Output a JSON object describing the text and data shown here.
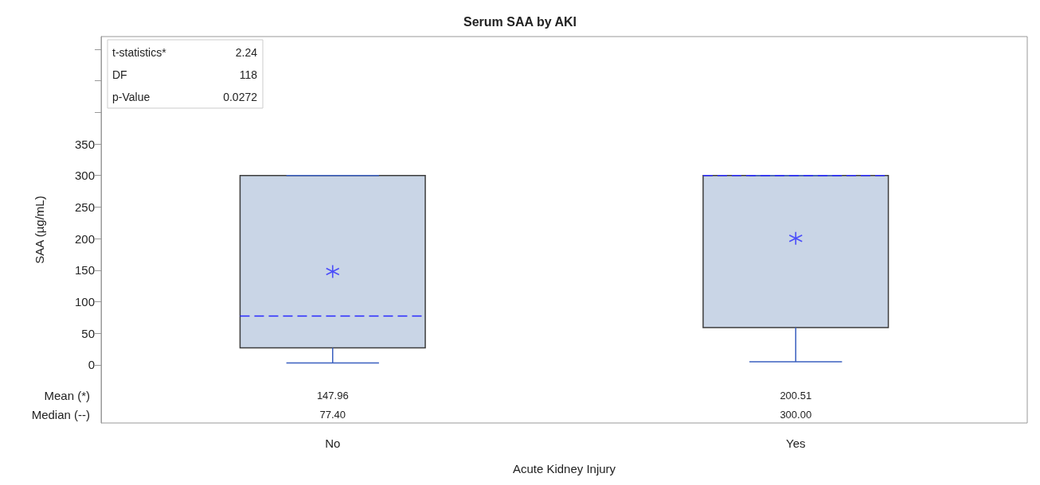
{
  "chart_data": {
    "type": "box",
    "title": "Serum SAA by AKI",
    "xlabel": "Acute Kidney Injury",
    "ylabel": "SAA (µg/mL)",
    "categories": [
      "No",
      "Yes"
    ],
    "color": "#c9d5e6",
    "boxes": [
      {
        "low": 3,
        "q1": 27,
        "median": 77.4,
        "q3": 300,
        "high": 300,
        "mean": 147.96
      },
      {
        "low": 5,
        "q1": 59,
        "median": 300,
        "q3": 300,
        "high": 300,
        "mean": 200.51
      }
    ],
    "ylim": [
      -92,
      520
    ],
    "yticks": [
      0,
      50,
      100,
      150,
      200,
      250,
      300,
      350,
      {
        "value": 400,
        "label": null
      },
      {
        "value": 450,
        "label": null
      },
      {
        "value": 500,
        "label": null
      }
    ],
    "grid": false,
    "annotations": [
      "t-statistics*",
      "2.24",
      "DF",
      "118",
      "p-Value",
      "0.0272",
      "Mean (*)",
      "Median (--)",
      "147.96",
      "77.40",
      "200.51",
      "300.00"
    ]
  }
}
